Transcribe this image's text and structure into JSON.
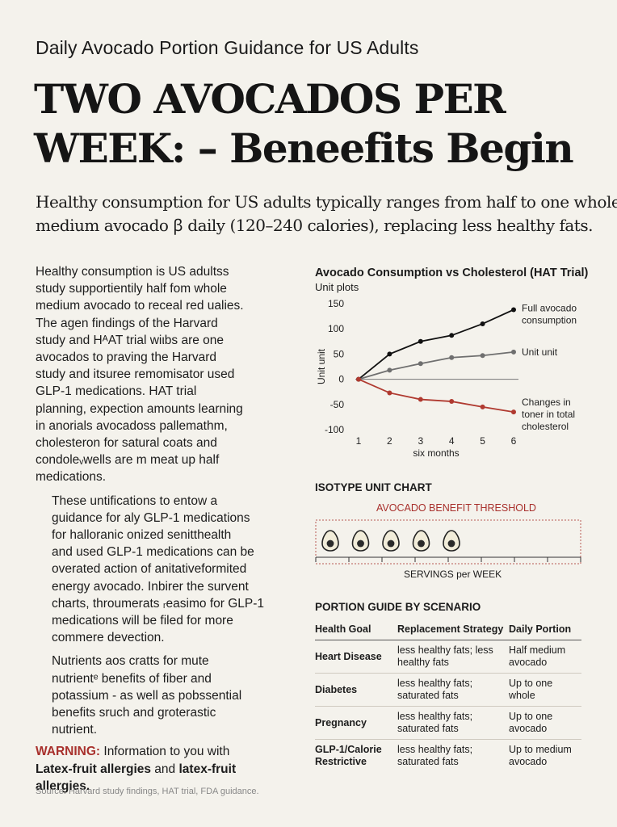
{
  "header": {
    "kicker": "Daily Avocado Portion Guidance for US Adults",
    "headline_line1": "TWO AVOCADOS PER",
    "headline_line2": "WEEK: – Beneefits Begin",
    "subhead_line1": "Healthy consumption for US adults typically ranges from half to one whole",
    "subhead_line2": "medium avocado ꞵ daily (120–240 calories), replacing less healthy fats."
  },
  "body": {
    "para1": [
      "Healthy consumption is US adultss",
      "study supportientily half fom whole",
      "medium avocado to receal red ualies.",
      "The agen findings of the Harvard",
      "study and HᴬAT trial wiιbs are one",
      "avocados to praving the Harvard",
      "study and itsuree remomisator used",
      "GLP-1 medications.  HAT trial",
      "planning, expection amounts learning",
      "in anorials avocadoss pallemathm,",
      "cholesteron for satural coats and",
      "condoleᵥwells are m meat up half",
      "medications."
    ],
    "para2": [
      "These untifications to entow a",
      "guidance for aly GLP-1 medications",
      "for halloranic onized senitthealth",
      "and used GLP-1 medications can be",
      "overated action of anitativeformited",
      "energy avocado. Inbirer the survent",
      "charts, throumerats ᵣeasimo for GLP-1",
      "medications will be filed for more",
      "commere devection."
    ],
    "para3": [
      "Nutrients aos cratts for mute",
      "nutrientᵉ benefits of fiber and",
      "potassium - as well as pobssential",
      "benefits sruch and groterastic",
      "nutrient."
    ],
    "warning_label": "WARNING:",
    "warning_text1": " Information to you with",
    "warning_bold1": "Latex-fruit allergies",
    "warning_text2": " and ",
    "warning_bold2": "latex-fruit",
    "warning_bold3": "allergies."
  },
  "source": "Source: Harvard study findings, HAT trial, FDA guidance.",
  "chart_data": [
    {
      "type": "line",
      "title": "Avocado Consumption vs Cholesterol (HAT Trial)",
      "subtitle": "Unit plots",
      "xlabel": "six months",
      "ylabel": "Unit unit",
      "x": [
        1,
        2,
        3,
        4,
        5,
        6
      ],
      "x_ticks": [
        "1",
        "2",
        "3",
        "4",
        "5",
        "6"
      ],
      "y_ticks": [
        "150",
        "100",
        "50",
        "0",
        "-50",
        "-100"
      ],
      "ylim": [
        -100,
        150
      ],
      "grid": "zero line only",
      "series": [
        {
          "name": "Full avocado consumption",
          "label_lines": [
            "Full avocado",
            "consumption"
          ],
          "color": "#111111",
          "values": [
            0,
            50,
            75,
            87,
            110,
            138
          ]
        },
        {
          "name": "Unit unit",
          "label_lines": [
            "Unit unit"
          ],
          "color": "#6f6f6f",
          "values": [
            0,
            18,
            31,
            43,
            47,
            54
          ]
        },
        {
          "name": "Changes in toner in total cholesterol",
          "label_lines": [
            "Changes in",
            "toner in total",
            "cholesterol"
          ],
          "color": "#b03a30",
          "values": [
            0,
            -27,
            -40,
            -44,
            -55,
            -65
          ]
        }
      ]
    },
    {
      "type": "isotype",
      "title": "ISOTYPE UNIT CHART",
      "threshold_label": "AVOCADO BENEFIT THRESHOLD",
      "xlabel": "SERVINGS per WEEK",
      "icon": "avocado-icon",
      "icon_count": 5,
      "tick_count": 9
    }
  ],
  "table": {
    "title": "PORTION GUIDE BY SCENARIO",
    "headers": [
      "Health Goal",
      "Replacement Strategy",
      "Daily Portion"
    ],
    "rows": [
      {
        "goal": "Heart Disease",
        "strategy": "less healthy fats; less healthy fats",
        "portion": "Half medium avocado"
      },
      {
        "goal": "Diabetes",
        "strategy": "less healthy fats; saturated fats",
        "portion": "Up to one whole"
      },
      {
        "goal": "Pregnancy",
        "strategy": "less healthy fats; saturated fats",
        "portion": "Up to one avocado"
      },
      {
        "goal": "GLP-1/Calorie Restrictive",
        "strategy": "less healthy fats; saturated fats",
        "portion": "Up to medium avocado"
      }
    ]
  }
}
